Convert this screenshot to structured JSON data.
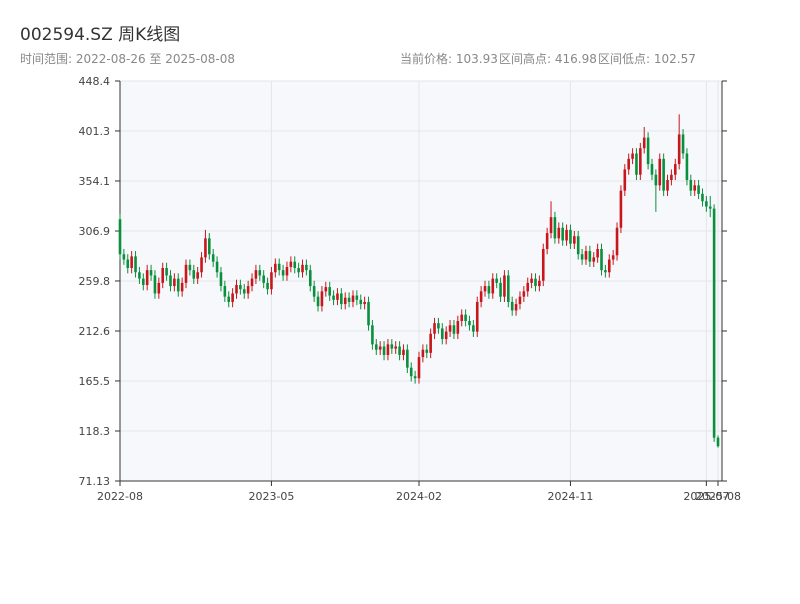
{
  "chart_data": {
    "type": "candlestick",
    "title": "002594.SZ 周K线图",
    "subtitle": "时间范围: 2022-08-26 至 2025-08-08",
    "stats": [
      "当前价格: 103.93",
      "区间高点: 416.98",
      "区间低点: 102.57"
    ],
    "up_color": "#c8161d",
    "down_color": "#0a8f3c",
    "grid": true,
    "ylim": [
      71.13,
      448.4
    ],
    "yticks": [
      71.13,
      118.3,
      165.5,
      212.6,
      259.8,
      306.9,
      354.1,
      401.3,
      448.4
    ],
    "categories": [
      "2022-08",
      null,
      null,
      null,
      null,
      null,
      null,
      null,
      null,
      null,
      null,
      null,
      null,
      null,
      null,
      null,
      null,
      null,
      null,
      null,
      null,
      null,
      null,
      null,
      null,
      null,
      null,
      null,
      null,
      null,
      null,
      null,
      null,
      null,
      null,
      null,
      null,
      null,
      null,
      "2023-05",
      null,
      null,
      null,
      null,
      null,
      null,
      null,
      null,
      null,
      null,
      null,
      null,
      null,
      null,
      null,
      null,
      null,
      null,
      null,
      null,
      null,
      null,
      null,
      null,
      null,
      null,
      null,
      null,
      null,
      null,
      null,
      null,
      null,
      null,
      null,
      null,
      null,
      "2024-02",
      null,
      null,
      null,
      null,
      null,
      null,
      null,
      null,
      null,
      null,
      null,
      null,
      null,
      null,
      null,
      null,
      null,
      null,
      null,
      null,
      null,
      null,
      null,
      null,
      null,
      null,
      null,
      null,
      null,
      null,
      null,
      null,
      null,
      null,
      null,
      null,
      null,
      null,
      "2024-11",
      null,
      null,
      null,
      null,
      null,
      null,
      null,
      null,
      null,
      null,
      null,
      null,
      null,
      null,
      null,
      null,
      null,
      null,
      null,
      null,
      null,
      null,
      null,
      null,
      null,
      null,
      null,
      null,
      null,
      null,
      null,
      null,
      null,
      null,
      "2025-07",
      null,
      null,
      "2025-08"
    ],
    "open": [
      318,
      285,
      280,
      272,
      283,
      268,
      262,
      256,
      270,
      265,
      248,
      258,
      272,
      265,
      255,
      262,
      250,
      258,
      275,
      270,
      262,
      268,
      282,
      300,
      285,
      278,
      268,
      255,
      245,
      240,
      248,
      256,
      252,
      248,
      255,
      262,
      270,
      265,
      258,
      252,
      268,
      276,
      270,
      265,
      273,
      278,
      272,
      268,
      275,
      270,
      255,
      245,
      236,
      250,
      254,
      246,
      242,
      248,
      238,
      244,
      240,
      246,
      242,
      238,
      240,
      218,
      200,
      195,
      198,
      190,
      200,
      196,
      198,
      190,
      195,
      178,
      170,
      168,
      188,
      195,
      192,
      210,
      220,
      215,
      205,
      212,
      218,
      210,
      222,
      228,
      222,
      218,
      212,
      240,
      250,
      255,
      248,
      262,
      258,
      245,
      265,
      240,
      232,
      238,
      245,
      250,
      258,
      262,
      255,
      260,
      290,
      305,
      320,
      300,
      310,
      298,
      308,
      295,
      302,
      285,
      280,
      288,
      278,
      282,
      290,
      270,
      268,
      280,
      284,
      310,
      345,
      365,
      375,
      380,
      360,
      385,
      395,
      370,
      360,
      350,
      375,
      345,
      355,
      360,
      370,
      398,
      380,
      355,
      345,
      350,
      342,
      335,
      330,
      328,
      112
    ],
    "high": [
      323,
      290,
      285,
      288,
      288,
      273,
      267,
      275,
      275,
      270,
      263,
      277,
      277,
      270,
      267,
      267,
      263,
      280,
      280,
      275,
      273,
      287,
      308,
      305,
      290,
      283,
      273,
      260,
      250,
      253,
      261,
      261,
      257,
      260,
      267,
      275,
      275,
      270,
      263,
      273,
      281,
      281,
      275,
      278,
      283,
      283,
      277,
      280,
      280,
      275,
      260,
      250,
      255,
      259,
      259,
      251,
      253,
      253,
      249,
      249,
      251,
      251,
      247,
      245,
      245,
      223,
      205,
      203,
      203,
      205,
      205,
      203,
      203,
      200,
      200,
      183,
      175,
      193,
      200,
      200,
      215,
      225,
      225,
      220,
      217,
      223,
      223,
      227,
      233,
      233,
      227,
      223,
      245,
      255,
      260,
      260,
      267,
      267,
      263,
      270,
      270,
      245,
      243,
      250,
      255,
      263,
      267,
      267,
      265,
      295,
      310,
      335,
      325,
      315,
      315,
      313,
      313,
      307,
      307,
      290,
      293,
      293,
      287,
      295,
      295,
      275,
      285,
      289,
      315,
      350,
      370,
      380,
      385,
      385,
      390,
      405,
      400,
      375,
      365,
      380,
      380,
      360,
      365,
      375,
      416.98,
      403,
      385,
      360,
      355,
      355,
      347,
      340,
      340,
      332,
      114
    ],
    "low": [
      280,
      275,
      267,
      267,
      263,
      257,
      251,
      251,
      260,
      243,
      243,
      253,
      260,
      250,
      250,
      245,
      245,
      253,
      265,
      257,
      257,
      263,
      277,
      280,
      273,
      263,
      250,
      240,
      235,
      235,
      243,
      247,
      243,
      243,
      250,
      257,
      260,
      253,
      247,
      247,
      263,
      265,
      260,
      260,
      268,
      267,
      263,
      263,
      265,
      250,
      240,
      231,
      231,
      245,
      241,
      237,
      237,
      233,
      233,
      235,
      235,
      237,
      233,
      233,
      213,
      195,
      190,
      190,
      185,
      185,
      191,
      191,
      185,
      185,
      173,
      165,
      163,
      163,
      183,
      187,
      187,
      205,
      210,
      200,
      200,
      207,
      205,
      205,
      217,
      217,
      213,
      207,
      207,
      235,
      245,
      243,
      243,
      253,
      240,
      240,
      235,
      227,
      227,
      233,
      240,
      245,
      253,
      250,
      250,
      255,
      285,
      300,
      295,
      295,
      293,
      293,
      290,
      290,
      280,
      275,
      275,
      273,
      273,
      277,
      265,
      263,
      263,
      275,
      279,
      305,
      340,
      360,
      370,
      355,
      355,
      380,
      365,
      355,
      325,
      345,
      340,
      340,
      350,
      355,
      365,
      375,
      350,
      340,
      340,
      337,
      330,
      325,
      320,
      108,
      102.57
    ],
    "close": [
      285,
      280,
      272,
      283,
      268,
      262,
      256,
      270,
      265,
      248,
      258,
      272,
      265,
      255,
      262,
      250,
      258,
      275,
      270,
      262,
      268,
      282,
      300,
      285,
      278,
      268,
      255,
      245,
      240,
      248,
      256,
      252,
      248,
      255,
      262,
      270,
      265,
      258,
      252,
      268,
      276,
      270,
      265,
      273,
      278,
      272,
      268,
      275,
      270,
      255,
      245,
      236,
      250,
      254,
      246,
      242,
      248,
      238,
      244,
      240,
      246,
      242,
      238,
      240,
      218,
      200,
      195,
      198,
      190,
      200,
      196,
      198,
      190,
      195,
      178,
      170,
      168,
      188,
      195,
      192,
      210,
      220,
      215,
      205,
      212,
      218,
      210,
      222,
      228,
      222,
      218,
      212,
      240,
      250,
      255,
      248,
      262,
      258,
      245,
      265,
      240,
      232,
      238,
      245,
      250,
      258,
      262,
      255,
      260,
      290,
      305,
      320,
      300,
      310,
      298,
      308,
      295,
      302,
      285,
      280,
      288,
      278,
      282,
      290,
      270,
      268,
      280,
      284,
      310,
      345,
      365,
      375,
      380,
      360,
      385,
      395,
      370,
      360,
      350,
      375,
      345,
      355,
      360,
      370,
      398,
      380,
      355,
      345,
      350,
      342,
      335,
      330,
      328,
      112,
      103.93
    ]
  }
}
